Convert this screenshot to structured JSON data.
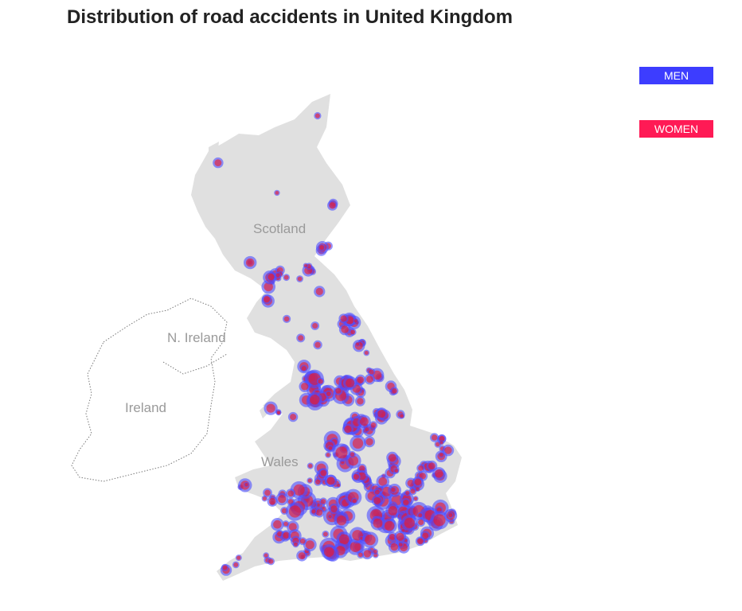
{
  "header": {
    "title": "Distribution of road accidents in United Kingdom"
  },
  "legend": {
    "men": {
      "label": "MEN",
      "color": "#3d3dff"
    },
    "women": {
      "label": "WOMEN",
      "color": "#ff1a55"
    }
  },
  "map": {
    "land_color": "#e0e0e0",
    "marker_fill": "#4d4dff",
    "marker_core": "#ff1010",
    "labels": {
      "scotland": "Scotland",
      "n_ireland": "N. Ireland",
      "ireland": "Ireland",
      "wales": "Wales"
    }
  }
}
